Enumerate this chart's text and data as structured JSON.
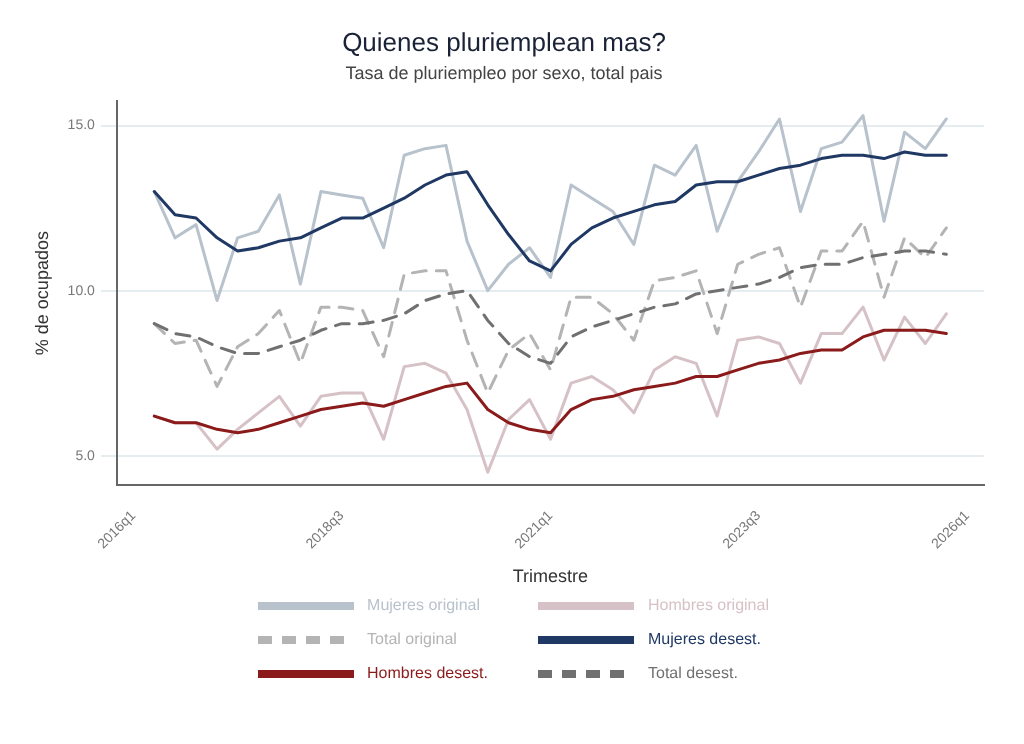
{
  "chart_data": {
    "type": "line",
    "title": "Quienes pluriemplean mas?",
    "subtitle": "Tasa de pluriempleo por sexo, total pais",
    "xlabel": "Trimestre",
    "ylabel": "% de ocupados",
    "x": [
      "2016-04",
      "2016-07",
      "2016-10",
      "2017-01",
      "2017-04",
      "2017-07",
      "2017-10",
      "2018-01",
      "2018-04",
      "2018-07",
      "2018-10",
      "2019-01",
      "2019-04",
      "2019-07",
      "2019-10",
      "2020-01",
      "2020-04",
      "2020-07",
      "2020-10",
      "2021-01",
      "2021-04",
      "2021-07",
      "2021-10",
      "2022-01",
      "2022-04",
      "2022-07",
      "2022-10",
      "2023-01",
      "2023-04",
      "2023-07",
      "2023-10",
      "2024-01",
      "2024-04",
      "2024-07",
      "2024-10",
      "2025-01",
      "2025-04",
      "2025-07",
      "2025-10"
    ],
    "xlim": [
      "2015-10-20",
      "2026-03-15"
    ],
    "xticks": [
      {
        "value": "2016-01",
        "label": "2016q1"
      },
      {
        "value": "2018-07",
        "label": "2018q3"
      },
      {
        "value": "2021-01",
        "label": "2021q1"
      },
      {
        "value": "2023-07",
        "label": "2023q3"
      },
      {
        "value": "2026-01",
        "label": "2026q1"
      }
    ],
    "ylim": [
      4.1,
      15.75
    ],
    "yticks": [
      {
        "value": 5,
        "label": "5.0"
      },
      {
        "value": 10,
        "label": "10.0"
      },
      {
        "value": 15,
        "label": "15.0"
      }
    ],
    "grid": "y",
    "legend": "bottom",
    "marker": "none",
    "series": [
      {
        "name": "Mujeres original",
        "color": "#b8c2cc",
        "line_style": "solid",
        "values": [
          13.0,
          11.6,
          12.0,
          9.7,
          11.6,
          11.8,
          12.9,
          10.2,
          13.0,
          12.9,
          12.8,
          11.3,
          14.1,
          14.3,
          14.4,
          11.5,
          10.0,
          10.8,
          11.3,
          10.4,
          13.2,
          12.8,
          12.4,
          11.4,
          13.8,
          13.5,
          14.4,
          11.8,
          13.3,
          14.2,
          15.2,
          12.4,
          14.3,
          14.5,
          15.3,
          12.1,
          14.8,
          14.3,
          15.2
        ]
      },
      {
        "name": "Hombres original",
        "color": "#d6c2c6",
        "line_style": "solid",
        "values": [
          6.2,
          6.0,
          6.0,
          5.2,
          5.8,
          6.3,
          6.8,
          5.9,
          6.8,
          6.9,
          6.9,
          5.5,
          7.7,
          7.8,
          7.5,
          6.4,
          4.5,
          6.1,
          6.7,
          5.5,
          7.2,
          7.4,
          7.0,
          6.3,
          7.6,
          8.0,
          7.8,
          6.2,
          8.5,
          8.6,
          8.4,
          7.2,
          8.7,
          8.7,
          9.5,
          7.9,
          9.2,
          8.4,
          9.3
        ]
      },
      {
        "name": "Total original",
        "color": "#b4b4b4",
        "line_style": "dashed",
        "values": [
          9.0,
          8.4,
          8.5,
          7.1,
          8.3,
          8.7,
          9.4,
          7.8,
          9.5,
          9.5,
          9.4,
          8.0,
          10.5,
          10.6,
          10.6,
          8.5,
          6.9,
          8.2,
          8.7,
          7.6,
          9.8,
          9.8,
          9.3,
          8.5,
          10.3,
          10.4,
          10.6,
          8.7,
          10.8,
          11.1,
          11.3,
          9.5,
          11.2,
          11.2,
          12.1,
          9.8,
          11.6,
          11.0,
          11.9
        ]
      },
      {
        "name": "Mujeres desest.",
        "color": "#1f3864",
        "line_style": "solid",
        "values": [
          13.0,
          12.3,
          12.2,
          11.6,
          11.2,
          11.3,
          11.5,
          11.6,
          11.9,
          12.2,
          12.2,
          12.5,
          12.8,
          13.2,
          13.5,
          13.6,
          12.6,
          11.7,
          10.9,
          10.6,
          11.4,
          11.9,
          12.2,
          12.4,
          12.6,
          12.7,
          13.2,
          13.3,
          13.3,
          13.5,
          13.7,
          13.8,
          14.0,
          14.1,
          14.1,
          14.0,
          14.2,
          14.1,
          14.1
        ]
      },
      {
        "name": "Hombres desest.",
        "color": "#8b1a1a",
        "line_style": "solid",
        "values": [
          6.2,
          6.0,
          6.0,
          5.8,
          5.7,
          5.8,
          6.0,
          6.2,
          6.4,
          6.5,
          6.6,
          6.5,
          6.7,
          6.9,
          7.1,
          7.2,
          6.4,
          6.0,
          5.8,
          5.7,
          6.4,
          6.7,
          6.8,
          7.0,
          7.1,
          7.2,
          7.4,
          7.4,
          7.6,
          7.8,
          7.9,
          8.1,
          8.2,
          8.2,
          8.6,
          8.8,
          8.8,
          8.8,
          8.7
        ]
      },
      {
        "name": "Total desest.",
        "color": "#707070",
        "line_style": "dashed",
        "values": [
          9.0,
          8.7,
          8.6,
          8.3,
          8.1,
          8.1,
          8.3,
          8.5,
          8.8,
          9.0,
          9.0,
          9.1,
          9.3,
          9.7,
          9.9,
          10.0,
          9.1,
          8.4,
          8.0,
          7.8,
          8.6,
          8.9,
          9.1,
          9.3,
          9.5,
          9.6,
          9.9,
          10.0,
          10.1,
          10.2,
          10.4,
          10.7,
          10.8,
          10.8,
          11.0,
          11.1,
          11.2,
          11.2,
          11.1
        ]
      }
    ]
  }
}
